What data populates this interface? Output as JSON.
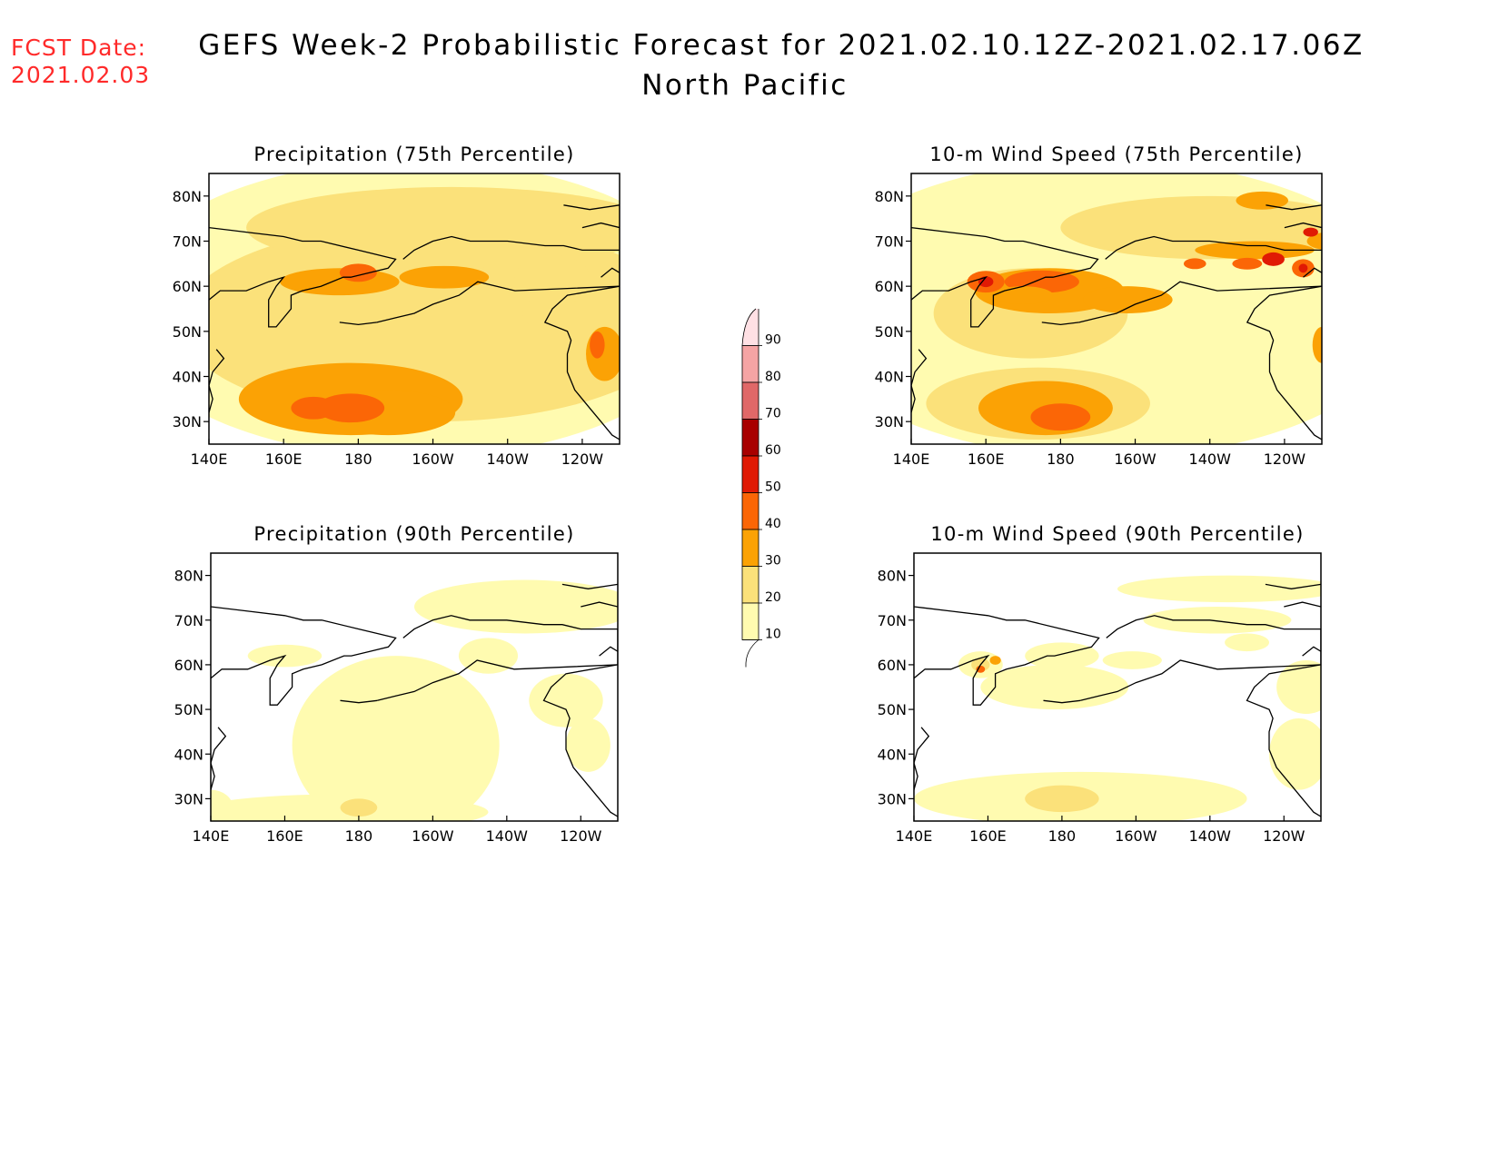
{
  "header": {
    "fcst_label": "FCST Date:",
    "fcst_date": "2021.02.03",
    "title": "GEFS Week-2 Probabilistic Forecast for 2021.02.10.12Z-2021.02.17.06Z",
    "region": "North Pacific"
  },
  "panels": [
    {
      "title": "Precipitation (75th Percentile)",
      "field": "precip75"
    },
    {
      "title": "10-m Wind Speed (75th Percentile)",
      "field": "wind75"
    },
    {
      "title": "Precipitation (90th Percentile)",
      "field": "precip90"
    },
    {
      "title": "10-m Wind Speed (90th Percentile)",
      "field": "wind90"
    }
  ],
  "axes": {
    "lon_labels": [
      "140E",
      "160E",
      "180",
      "160W",
      "140W",
      "120W"
    ],
    "lat_labels": [
      "30N",
      "40N",
      "50N",
      "60N",
      "70N",
      "80N"
    ],
    "lon_range_deg_east": [
      140,
      250
    ],
    "lat_range": [
      25,
      85
    ]
  },
  "colorbar": {
    "levels": [
      "10",
      "20",
      "30",
      "40",
      "50",
      "60",
      "70",
      "80",
      "90"
    ],
    "colors": [
      "#fffbb0",
      "#fbe17a",
      "#fba205",
      "#fb6606",
      "#e01a04",
      "#a80000",
      "#e06868",
      "#f5a4a4",
      "#ffe0e4"
    ]
  }
}
